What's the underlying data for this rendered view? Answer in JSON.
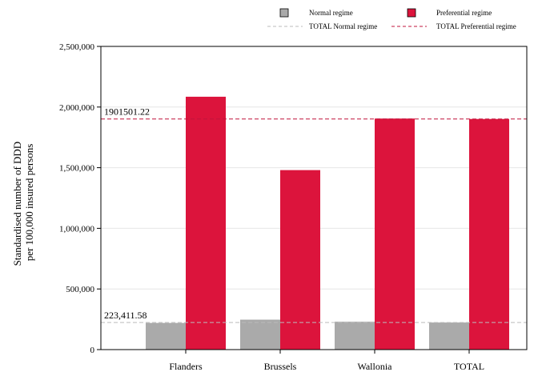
{
  "chart_data": {
    "type": "bar",
    "categories": [
      "Flanders",
      "Brussels",
      "Wallonia",
      "TOTAL"
    ],
    "series": [
      {
        "name": "Normal regime",
        "color": "#aaaaaa",
        "values": [
          220000,
          247000,
          230000,
          223411.58
        ]
      },
      {
        "name": "Preferential regime",
        "color": "#dc143c",
        "values": [
          2085000,
          1480000,
          1905000,
          1901501.22
        ]
      }
    ],
    "reference_lines": [
      {
        "name": "TOTAL Normal regime",
        "value": 223411.58,
        "label": "223,411.58",
        "color": "#bbbbbb",
        "style": "dashed"
      },
      {
        "name": "TOTAL Preferential regime",
        "value": 1901501.22,
        "label": "1901501.22",
        "color": "#c0143c",
        "style": "dashed"
      }
    ],
    "ylabel_lines": [
      "Standardised number of DDD",
      "per 100,000 insured persons"
    ],
    "xlabel": "",
    "ylim": [
      0,
      2500000
    ],
    "yticks": [
      0,
      500000,
      1000000,
      1500000,
      2000000,
      2500000
    ],
    "ytick_labels": [
      "0",
      "500,000",
      "1,000,000",
      "1,500,000",
      "2,000,000",
      "2,500,000"
    ],
    "grid": "horizontal",
    "legend_position": "top"
  }
}
